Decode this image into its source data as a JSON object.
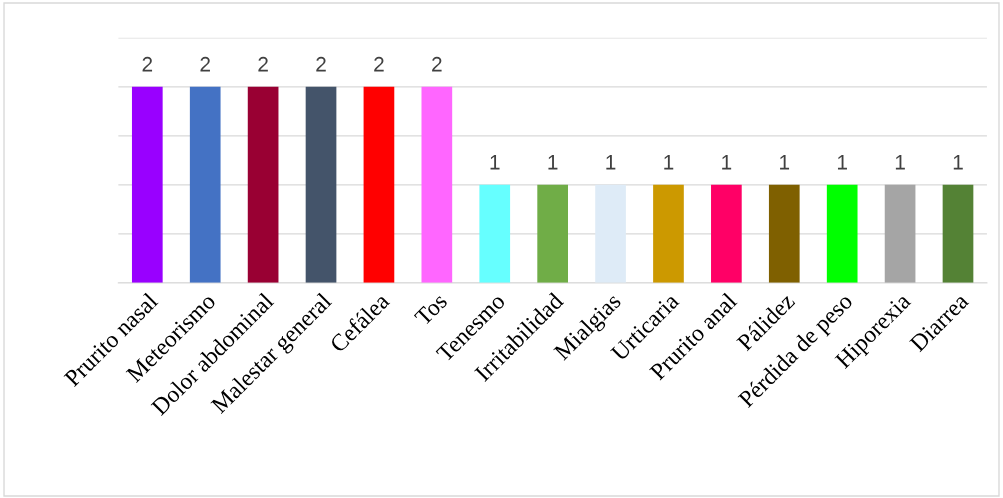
{
  "chart_data": {
    "type": "bar",
    "categories": [
      "Prurito nasal",
      "Meteorismo",
      "Dolor abdominal",
      "Malestar general",
      "Cefálea",
      "Tos",
      "Tenesmo",
      "Irritabilidad",
      "Mialgias",
      "Urticaria",
      "Prurito anal",
      "Pálidez",
      "Pérdida de peso",
      "Hiporexia",
      "Diarrea"
    ],
    "values": [
      2,
      2,
      2,
      2,
      2,
      2,
      1,
      1,
      1,
      1,
      1,
      1,
      1,
      1,
      1
    ],
    "colors": [
      "#9900ff",
      "#4472c4",
      "#990033",
      "#44546a",
      "#ff0000",
      "#ff66ff",
      "#66ffff",
      "#70ad47",
      "#deebf7",
      "#cc9900",
      "#ff0066",
      "#7f6000",
      "#00ff00",
      "#a5a5a5",
      "#548235"
    ],
    "ylim": [
      0,
      2.5
    ],
    "yticks": [
      {
        "value": 0,
        "label": null
      },
      {
        "value": 0.5,
        "label": null
      },
      {
        "value": 1,
        "label": null
      },
      {
        "value": 1.5,
        "label": null
      },
      {
        "value": 2,
        "label": null
      },
      {
        "value": 2.5,
        "label": null
      }
    ],
    "tick_labels": "x",
    "grid": "y",
    "data_labels": true,
    "legend": false
  }
}
